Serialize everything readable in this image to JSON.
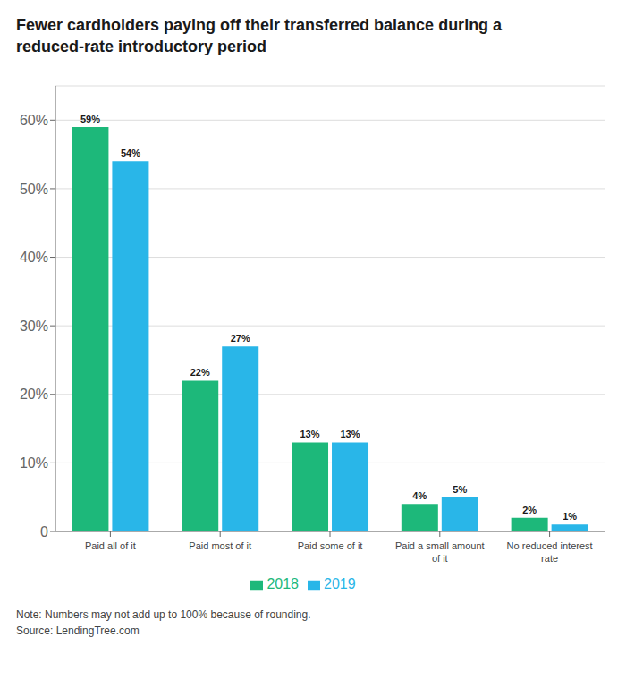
{
  "chart_data": {
    "type": "bar",
    "title": "Fewer cardholders paying off their transferred balance during a\nreduced-rate introductory period",
    "categories": [
      "Paid all of it",
      "Paid most of it",
      "Paid some of it",
      "Paid a small amount\nof it",
      "No reduced interest\nrate"
    ],
    "series": [
      {
        "name": "2018",
        "color": "#1DB87A",
        "values": [
          59,
          22,
          13,
          4,
          2
        ],
        "value_labels": [
          "59%",
          "22%",
          "13%",
          "4%",
          "2%"
        ]
      },
      {
        "name": "2019",
        "color": "#29B6E8",
        "values": [
          54,
          27,
          13,
          5,
          1
        ],
        "value_labels": [
          "54%",
          "27%",
          "13%",
          "5%",
          "1%"
        ]
      }
    ],
    "ylim": [
      0,
      65
    ],
    "yticks": [
      0,
      {
        "value": 10,
        "label": "10%"
      },
      {
        "value": 20,
        "label": "20%"
      },
      {
        "value": 30,
        "label": "30%"
      },
      {
        "value": 40,
        "label": "40%"
      },
      {
        "value": 50,
        "label": "50%"
      },
      {
        "value": 60,
        "label": "60%"
      }
    ],
    "grid": true,
    "legend": "bottom",
    "data_labels": true,
    "annotations": [
      "Note: Numbers may not add up to 100% because of rounding.",
      "Source: LendingTree.com"
    ]
  }
}
